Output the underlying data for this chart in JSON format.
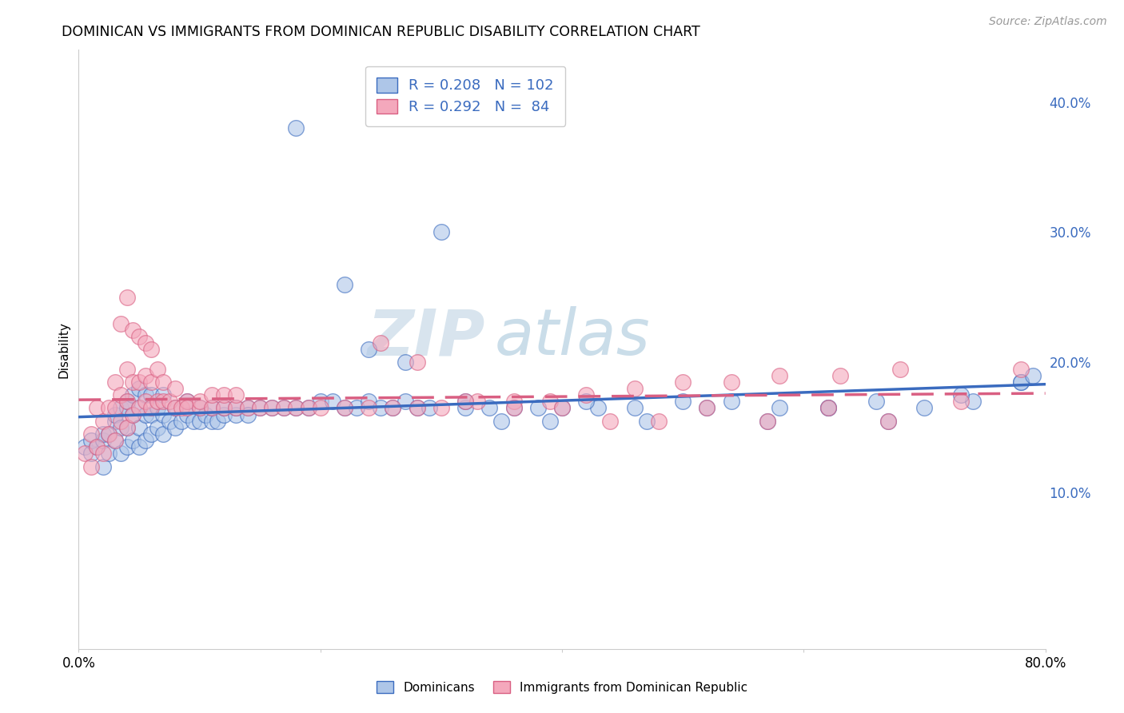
{
  "title": "DOMINICAN VS IMMIGRANTS FROM DOMINICAN REPUBLIC DISABILITY CORRELATION CHART",
  "source": "Source: ZipAtlas.com",
  "ylabel": "Disability",
  "xlim": [
    0.0,
    0.8
  ],
  "ylim": [
    -0.02,
    0.44
  ],
  "yticks": [
    0.1,
    0.2,
    0.3,
    0.4
  ],
  "ytick_labels": [
    "10.0%",
    "20.0%",
    "30.0%",
    "40.0%"
  ],
  "xticks": [
    0.0,
    0.2,
    0.4,
    0.6,
    0.8
  ],
  "xtick_labels": [
    "0.0%",
    "",
    "",
    "",
    "80.0%"
  ],
  "color_blue": "#aec6e8",
  "color_pink": "#f4a8bc",
  "line_blue": "#3a6bbf",
  "line_pink": "#d95f82",
  "legend_text_color": "#3a6bbf",
  "watermark_zip": "ZIP",
  "watermark_atlas": "atlas",
  "dominicans_x": [
    0.005,
    0.01,
    0.01,
    0.015,
    0.02,
    0.02,
    0.02,
    0.025,
    0.025,
    0.03,
    0.03,
    0.03,
    0.035,
    0.035,
    0.035,
    0.04,
    0.04,
    0.04,
    0.04,
    0.045,
    0.045,
    0.045,
    0.05,
    0.05,
    0.05,
    0.05,
    0.055,
    0.055,
    0.055,
    0.06,
    0.06,
    0.06,
    0.065,
    0.065,
    0.07,
    0.07,
    0.07,
    0.075,
    0.08,
    0.08,
    0.085,
    0.09,
    0.09,
    0.095,
    0.1,
    0.1,
    0.105,
    0.11,
    0.11,
    0.115,
    0.12,
    0.12,
    0.13,
    0.13,
    0.14,
    0.14,
    0.15,
    0.16,
    0.17,
    0.18,
    0.19,
    0.2,
    0.21,
    0.22,
    0.23,
    0.24,
    0.25,
    0.26,
    0.27,
    0.28,
    0.29,
    0.3,
    0.32,
    0.34,
    0.36,
    0.38,
    0.4,
    0.43,
    0.46,
    0.5,
    0.54,
    0.58,
    0.62,
    0.66,
    0.7,
    0.74,
    0.78,
    0.24,
    0.27,
    0.32,
    0.35,
    0.39,
    0.42,
    0.47,
    0.52,
    0.57,
    0.62,
    0.67,
    0.73,
    0.78,
    0.79,
    0.18,
    0.22
  ],
  "dominicans_y": [
    0.135,
    0.13,
    0.14,
    0.135,
    0.12,
    0.14,
    0.145,
    0.13,
    0.145,
    0.14,
    0.155,
    0.16,
    0.13,
    0.15,
    0.165,
    0.135,
    0.15,
    0.165,
    0.17,
    0.14,
    0.16,
    0.175,
    0.135,
    0.15,
    0.165,
    0.18,
    0.14,
    0.16,
    0.175,
    0.145,
    0.16,
    0.175,
    0.15,
    0.165,
    0.145,
    0.16,
    0.175,
    0.155,
    0.15,
    0.165,
    0.155,
    0.16,
    0.17,
    0.155,
    0.155,
    0.165,
    0.16,
    0.155,
    0.165,
    0.155,
    0.16,
    0.165,
    0.16,
    0.165,
    0.165,
    0.16,
    0.165,
    0.165,
    0.165,
    0.165,
    0.165,
    0.17,
    0.17,
    0.165,
    0.165,
    0.17,
    0.165,
    0.165,
    0.17,
    0.165,
    0.165,
    0.3,
    0.165,
    0.165,
    0.165,
    0.165,
    0.165,
    0.165,
    0.165,
    0.17,
    0.17,
    0.165,
    0.165,
    0.17,
    0.165,
    0.17,
    0.185,
    0.21,
    0.2,
    0.17,
    0.155,
    0.155,
    0.17,
    0.155,
    0.165,
    0.155,
    0.165,
    0.155,
    0.175,
    0.185,
    0.19,
    0.38,
    0.26
  ],
  "immigrants_x": [
    0.005,
    0.01,
    0.01,
    0.015,
    0.015,
    0.02,
    0.02,
    0.025,
    0.025,
    0.03,
    0.03,
    0.03,
    0.035,
    0.035,
    0.04,
    0.04,
    0.04,
    0.045,
    0.045,
    0.05,
    0.05,
    0.055,
    0.055,
    0.06,
    0.06,
    0.065,
    0.065,
    0.07,
    0.07,
    0.075,
    0.08,
    0.08,
    0.085,
    0.09,
    0.09,
    0.1,
    0.1,
    0.11,
    0.11,
    0.12,
    0.12,
    0.13,
    0.13,
    0.14,
    0.15,
    0.16,
    0.17,
    0.18,
    0.19,
    0.2,
    0.22,
    0.24,
    0.26,
    0.28,
    0.3,
    0.33,
    0.36,
    0.39,
    0.42,
    0.46,
    0.5,
    0.54,
    0.58,
    0.63,
    0.68,
    0.25,
    0.28,
    0.32,
    0.36,
    0.4,
    0.44,
    0.48,
    0.52,
    0.57,
    0.62,
    0.67,
    0.73,
    0.78,
    0.035,
    0.04,
    0.045,
    0.05,
    0.055,
    0.06
  ],
  "immigrants_y": [
    0.13,
    0.12,
    0.145,
    0.135,
    0.165,
    0.13,
    0.155,
    0.145,
    0.165,
    0.14,
    0.165,
    0.185,
    0.155,
    0.175,
    0.15,
    0.17,
    0.195,
    0.16,
    0.185,
    0.165,
    0.185,
    0.17,
    0.19,
    0.165,
    0.185,
    0.17,
    0.195,
    0.17,
    0.185,
    0.17,
    0.165,
    0.18,
    0.165,
    0.17,
    0.165,
    0.165,
    0.17,
    0.165,
    0.175,
    0.165,
    0.175,
    0.165,
    0.175,
    0.165,
    0.165,
    0.165,
    0.165,
    0.165,
    0.165,
    0.165,
    0.165,
    0.165,
    0.165,
    0.165,
    0.165,
    0.17,
    0.17,
    0.17,
    0.175,
    0.18,
    0.185,
    0.185,
    0.19,
    0.19,
    0.195,
    0.215,
    0.2,
    0.17,
    0.165,
    0.165,
    0.155,
    0.155,
    0.165,
    0.155,
    0.165,
    0.155,
    0.17,
    0.195,
    0.23,
    0.25,
    0.225,
    0.22,
    0.215,
    0.21
  ]
}
